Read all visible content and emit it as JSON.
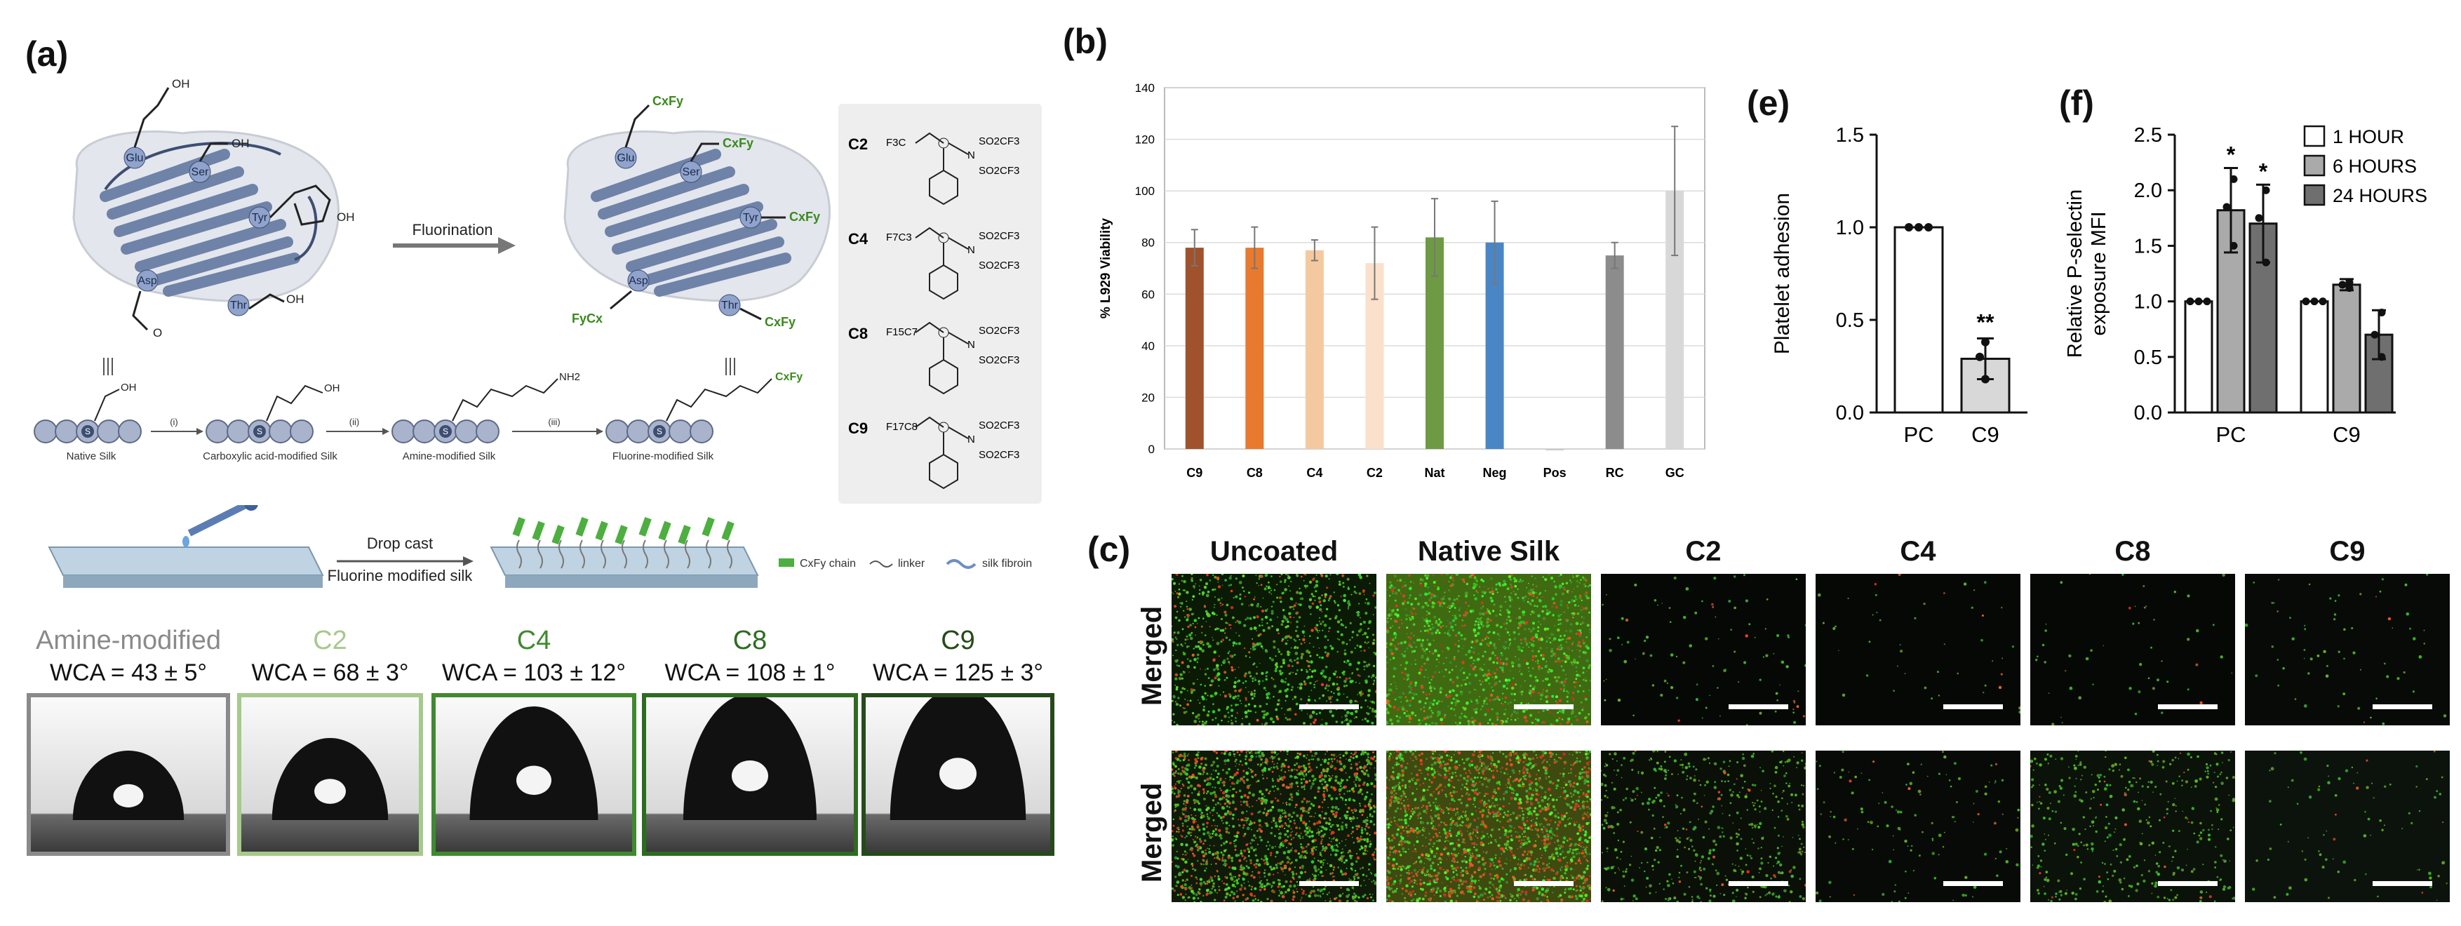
{
  "panel_labels": {
    "a": "(a)",
    "b": "(b)",
    "c": "(c)",
    "e": "(e)",
    "f": "(f)"
  },
  "panel_a": {
    "protein_residues": [
      "Glu",
      "Ser",
      "Tyr",
      "Asp",
      "Thr"
    ],
    "reaction_arrow_label": "Fluorination",
    "pendant_group_label": "CxFy",
    "pendant_group_label_alt": "FyCx",
    "scheme_steps": [
      "(i)",
      "(ii)",
      "(iii)"
    ],
    "scheme_labels": [
      "Native Silk",
      "Carboxylic acid-modified Silk",
      "Amine-modified Silk",
      "Fluorine-modified Silk"
    ],
    "s_marker": "S",
    "reagents": [
      {
        "code": "C2",
        "chain": "F3C"
      },
      {
        "code": "C4",
        "chain": "F7C3"
      },
      {
        "code": "C8",
        "chain": "F15C7"
      },
      {
        "code": "C9",
        "chain": "F17C8"
      }
    ],
    "reagent_groups": [
      "SO2CF3",
      "SO2CF3"
    ],
    "drop_cast_label_top": "Drop cast",
    "drop_cast_label_bottom": "Fluorine modified silk",
    "legend": [
      "CxFy chain",
      "linker",
      "silk fibroin"
    ],
    "wca_samples": [
      {
        "name": "Amine-modified",
        "value": "WCA = 43 ± 5°",
        "color": "#8a8a8a",
        "drop_scale": 0.55
      },
      {
        "name": "C2",
        "value": "WCA = 68 ± 3°",
        "color": "#a6c98c",
        "drop_scale": 0.65
      },
      {
        "name": "C4",
        "value": "WCA = 103 ± 12°",
        "color": "#3f8a2e",
        "drop_scale": 0.9
      },
      {
        "name": "C8",
        "value": "WCA = 108 ± 1°",
        "color": "#2e6b22",
        "drop_scale": 1.0
      },
      {
        "name": "C9",
        "value": "WCA = 125 ± 3°",
        "color": "#254a1b",
        "drop_scale": 1.05
      }
    ]
  },
  "chart_data": [
    {
      "id": "b",
      "type": "bar",
      "ylabel": "% L929 Viability",
      "ylim": [
        0,
        140
      ],
      "yticks": [
        0,
        20,
        40,
        60,
        80,
        100,
        120,
        140
      ],
      "grid": true,
      "categories": [
        "C9",
        "C8",
        "C4",
        "C2",
        "Nat",
        "Neg",
        "Pos",
        "RC",
        "GC"
      ],
      "values": [
        78,
        78,
        77,
        72,
        82,
        80,
        0,
        75,
        100
      ],
      "errors": [
        7,
        8,
        4,
        14,
        15,
        16,
        0,
        5,
        25
      ],
      "colors": [
        "#a0522d",
        "#e87a2e",
        "#f5c9a0",
        "#fbe0cc",
        "#6e9a43",
        "#4a86c6",
        "#cccccc",
        "#8c8c8c",
        "#d8d8d8"
      ]
    },
    {
      "id": "e",
      "type": "bar",
      "ylabel": "Platelet adhesion",
      "ylim": [
        0,
        1.5
      ],
      "yticks": [
        "0.0",
        "0.5",
        "1.0",
        "1.5"
      ],
      "categories": [
        "PC",
        "C9"
      ],
      "values": [
        1.0,
        0.29
      ],
      "errors": [
        0,
        0.11
      ],
      "points": [
        [
          1.0,
          1.0,
          1.0
        ],
        [
          0.38,
          0.3,
          0.18
        ]
      ],
      "colors": [
        "#ffffff",
        "#d8d8d8"
      ],
      "annotations": [
        "",
        "**"
      ]
    },
    {
      "id": "f",
      "type": "bar",
      "ylabel": "Relative P-selectin exposure MFI",
      "ylabel_lines": [
        "Relative P-selectin",
        "exposure MFI"
      ],
      "ylim": [
        0,
        2.5
      ],
      "yticks": [
        "0.0",
        "0.5",
        "1.0",
        "1.5",
        "2.0",
        "2.5"
      ],
      "categories": [
        "PC",
        "C9"
      ],
      "series": [
        {
          "name": "1 HOUR",
          "values": [
            1.0,
            1.0
          ],
          "errors": [
            0,
            0
          ],
          "color": "#ffffff",
          "points": [
            [
              1.0,
              1.0,
              1.0
            ],
            [
              1.0,
              1.0,
              1.0
            ]
          ]
        },
        {
          "name": "6 HOURS",
          "values": [
            1.82,
            1.15
          ],
          "errors": [
            0.38,
            0.05
          ],
          "color": "#aaaaaa",
          "points": [
            [
              2.1,
              1.85,
              1.5
            ],
            [
              1.17,
              1.15,
              1.12
            ]
          ]
        },
        {
          "name": "24 HOURS",
          "values": [
            1.7,
            0.7
          ],
          "errors": [
            0.35,
            0.22
          ],
          "color": "#6f6f6f",
          "points": [
            [
              2.0,
              1.75,
              1.35
            ],
            [
              0.9,
              0.7,
              0.5
            ]
          ]
        }
      ],
      "annotations": [
        [
          "",
          "*",
          "*"
        ],
        [
          "",
          "",
          ""
        ]
      ],
      "legend_position": "top-right"
    }
  ],
  "panel_c": {
    "columns": [
      "Uncoated",
      "Native Silk",
      "C2",
      "C4",
      "C8",
      "C9"
    ],
    "row_label": "Merged",
    "rows": 2
  }
}
